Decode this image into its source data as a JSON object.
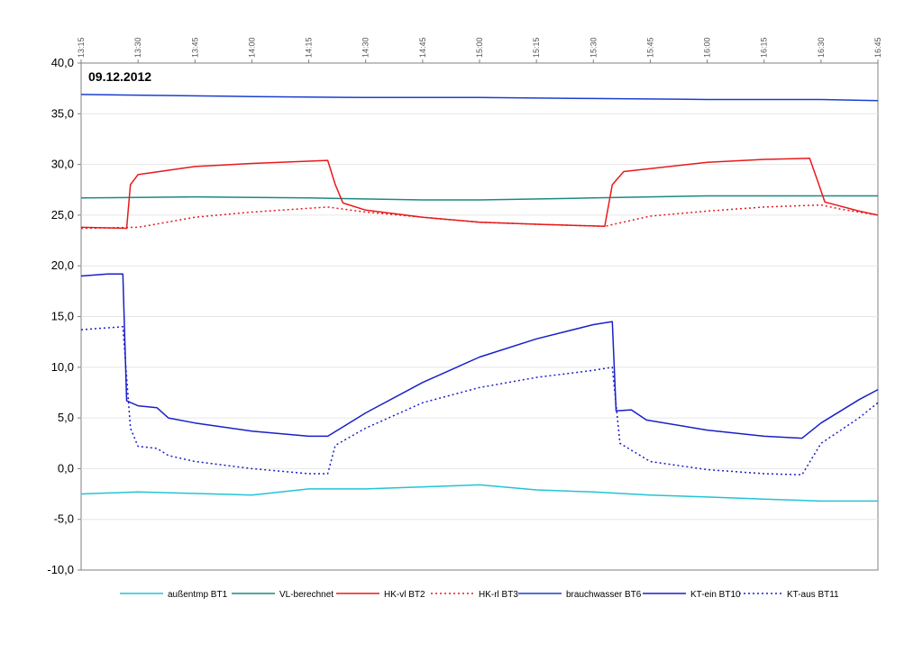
{
  "chart_data": {
    "type": "line",
    "title": "09.12.2012",
    "xlabel": "",
    "ylabel": "",
    "ylim": [
      -10,
      40
    ],
    "ytick_labels": [
      "-10,0",
      "-5,0",
      "0,0",
      "5,0",
      "10,0",
      "15,0",
      "20,0",
      "25,0",
      "30,0",
      "35,0",
      "40,0"
    ],
    "xlim": [
      "13:15",
      "16:45"
    ],
    "xtick_labels": [
      "13:15",
      "13:30",
      "13:45",
      "14:00",
      "14:15",
      "14:30",
      "14:45",
      "15:00",
      "15:15",
      "15:30",
      "15:45",
      "16:00",
      "16:15",
      "16:30",
      "16:45"
    ],
    "grid": "horizontal",
    "legend_position": "bottom",
    "series": [
      {
        "name": "außentmp BT1",
        "color": "#22c4d4",
        "dash": "solid",
        "points": [
          [
            "13:15",
            -2.5
          ],
          [
            "13:30",
            -2.3
          ],
          [
            "14:00",
            -2.6
          ],
          [
            "14:15",
            -2.0
          ],
          [
            "14:30",
            -2.0
          ],
          [
            "15:00",
            -1.6
          ],
          [
            "15:15",
            -2.1
          ],
          [
            "15:30",
            -2.3
          ],
          [
            "15:45",
            -2.6
          ],
          [
            "16:00",
            -2.8
          ],
          [
            "16:15",
            -3.0
          ],
          [
            "16:30",
            -3.2
          ],
          [
            "16:45",
            -3.2
          ]
        ]
      },
      {
        "name": "VL-berechnet",
        "color": "#1a8a80",
        "dash": "solid",
        "points": [
          [
            "13:15",
            26.7
          ],
          [
            "13:45",
            26.8
          ],
          [
            "14:15",
            26.7
          ],
          [
            "14:45",
            26.5
          ],
          [
            "15:00",
            26.5
          ],
          [
            "15:30",
            26.7
          ],
          [
            "15:45",
            26.8
          ],
          [
            "16:00",
            26.9
          ],
          [
            "16:45",
            26.9
          ]
        ]
      },
      {
        "name": "HK-vl BT2",
        "color": "#e8191c",
        "dash": "solid",
        "points": [
          [
            "13:15",
            23.8
          ],
          [
            "13:27",
            23.7
          ],
          [
            "13:28",
            28.0
          ],
          [
            "13:30",
            29.0
          ],
          [
            "13:45",
            29.8
          ],
          [
            "14:00",
            30.1
          ],
          [
            "14:20",
            30.4
          ],
          [
            "14:22",
            28.0
          ],
          [
            "14:24",
            26.2
          ],
          [
            "14:30",
            25.5
          ],
          [
            "14:45",
            24.8
          ],
          [
            "15:00",
            24.3
          ],
          [
            "15:15",
            24.1
          ],
          [
            "15:33",
            23.9
          ],
          [
            "15:35",
            28.0
          ],
          [
            "15:38",
            29.3
          ],
          [
            "16:00",
            30.2
          ],
          [
            "16:15",
            30.5
          ],
          [
            "16:27",
            30.6
          ],
          [
            "16:29",
            28.5
          ],
          [
            "16:31",
            26.3
          ],
          [
            "16:40",
            25.4
          ],
          [
            "16:45",
            25.0
          ]
        ]
      },
      {
        "name": "HK-rl BT3",
        "color": "#e8191c",
        "dash": "dotted",
        "points": [
          [
            "13:15",
            23.7
          ],
          [
            "13:30",
            23.8
          ],
          [
            "13:45",
            24.8
          ],
          [
            "14:00",
            25.3
          ],
          [
            "14:20",
            25.8
          ],
          [
            "14:30",
            25.3
          ],
          [
            "14:45",
            24.8
          ],
          [
            "15:00",
            24.3
          ],
          [
            "15:15",
            24.1
          ],
          [
            "15:33",
            23.9
          ],
          [
            "15:45",
            24.9
          ],
          [
            "16:00",
            25.4
          ],
          [
            "16:15",
            25.8
          ],
          [
            "16:30",
            26.0
          ],
          [
            "16:35",
            25.6
          ],
          [
            "16:45",
            25.0
          ]
        ]
      },
      {
        "name": "brauchwasser BT6",
        "color": "#1a3fd0",
        "dash": "solid",
        "points": [
          [
            "13:15",
            36.9
          ],
          [
            "14:00",
            36.7
          ],
          [
            "14:30",
            36.6
          ],
          [
            "15:00",
            36.6
          ],
          [
            "15:30",
            36.5
          ],
          [
            "16:00",
            36.4
          ],
          [
            "16:30",
            36.4
          ],
          [
            "16:45",
            36.3
          ]
        ]
      },
      {
        "name": "KT-ein BT10",
        "color": "#1a1fc8",
        "dash": "solid",
        "points": [
          [
            "13:15",
            19.0
          ],
          [
            "13:22",
            19.2
          ],
          [
            "13:26",
            19.2
          ],
          [
            "13:27",
            6.7
          ],
          [
            "13:30",
            6.2
          ],
          [
            "13:35",
            6.0
          ],
          [
            "13:38",
            5.0
          ],
          [
            "13:45",
            4.5
          ],
          [
            "14:00",
            3.7
          ],
          [
            "14:15",
            3.2
          ],
          [
            "14:20",
            3.2
          ],
          [
            "14:30",
            5.5
          ],
          [
            "14:45",
            8.5
          ],
          [
            "15:00",
            11.0
          ],
          [
            "15:15",
            12.8
          ],
          [
            "15:30",
            14.2
          ],
          [
            "15:35",
            14.5
          ],
          [
            "15:36",
            5.7
          ],
          [
            "15:40",
            5.8
          ],
          [
            "15:44",
            4.8
          ],
          [
            "16:00",
            3.8
          ],
          [
            "16:15",
            3.2
          ],
          [
            "16:25",
            3.0
          ],
          [
            "16:30",
            4.5
          ],
          [
            "16:40",
            6.8
          ],
          [
            "16:45",
            7.8
          ]
        ]
      },
      {
        "name": "KT-aus BT11",
        "color": "#1a1fc8",
        "dash": "dotted",
        "points": [
          [
            "13:15",
            13.7
          ],
          [
            "13:26",
            14.0
          ],
          [
            "13:28",
            4.0
          ],
          [
            "13:30",
            2.2
          ],
          [
            "13:35",
            2.0
          ],
          [
            "13:38",
            1.3
          ],
          [
            "13:45",
            0.7
          ],
          [
            "14:00",
            0.0
          ],
          [
            "14:15",
            -0.5
          ],
          [
            "14:20",
            -0.5
          ],
          [
            "14:22",
            2.3
          ],
          [
            "14:30",
            4.0
          ],
          [
            "14:45",
            6.5
          ],
          [
            "15:00",
            8.0
          ],
          [
            "15:15",
            9.0
          ],
          [
            "15:30",
            9.7
          ],
          [
            "15:35",
            10.0
          ],
          [
            "15:37",
            2.5
          ],
          [
            "15:45",
            0.7
          ],
          [
            "16:00",
            -0.1
          ],
          [
            "16:15",
            -0.5
          ],
          [
            "16:25",
            -0.6
          ],
          [
            "16:30",
            2.5
          ],
          [
            "16:40",
            5.0
          ],
          [
            "16:45",
            6.5
          ]
        ]
      }
    ]
  }
}
